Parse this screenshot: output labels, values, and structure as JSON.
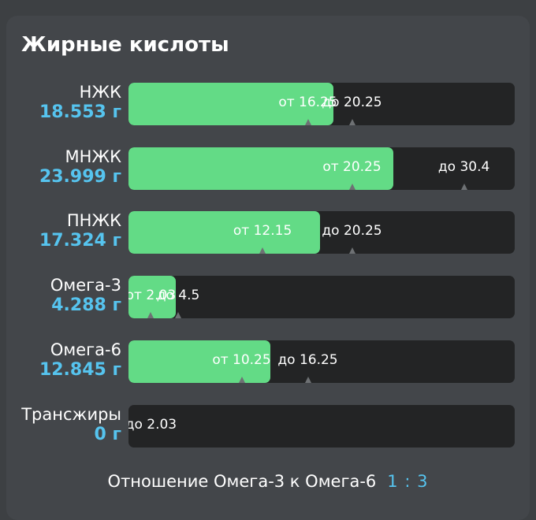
{
  "title": "Жирные кислоты",
  "scale_max": 35,
  "rows": [
    {
      "name": "НЖК",
      "value": "18.553 г",
      "amount": 18.553,
      "min": 16.25,
      "max": 20.25,
      "min_label": "от 16.25",
      "max_label": "до 20.25"
    },
    {
      "name": "МНЖК",
      "value": "23.999 г",
      "amount": 23.999,
      "min": 20.25,
      "max": 30.4,
      "min_label": "от 20.25",
      "max_label": "до 30.4"
    },
    {
      "name": "ПНЖК",
      "value": "17.324 г",
      "amount": 17.324,
      "min": 12.15,
      "max": 20.25,
      "min_label": "от 12.15",
      "max_label": "до 20.25"
    },
    {
      "name": "Омега-3",
      "value": "4.288 г",
      "amount": 4.288,
      "min": 2.03,
      "max": 4.5,
      "min_label": "от 2.03",
      "max_label": "до 4.5"
    },
    {
      "name": "Омега-6",
      "value": "12.845 г",
      "amount": 12.845,
      "min": 10.25,
      "max": 16.25,
      "min_label": "от 10.25",
      "max_label": "до 16.25"
    },
    {
      "name": "Трансжиры",
      "value": "0 г",
      "amount": 0,
      "min": null,
      "max": 2.03,
      "min_label": "",
      "max_label": "до 2.03"
    }
  ],
  "footer": {
    "label": "Отношение Омега-3 к Омега-6",
    "ratio": "1 : 3"
  },
  "colors": {
    "fill": "#63db86",
    "track": "#232425",
    "value": "#56c4ef",
    "background": "#43464a"
  }
}
